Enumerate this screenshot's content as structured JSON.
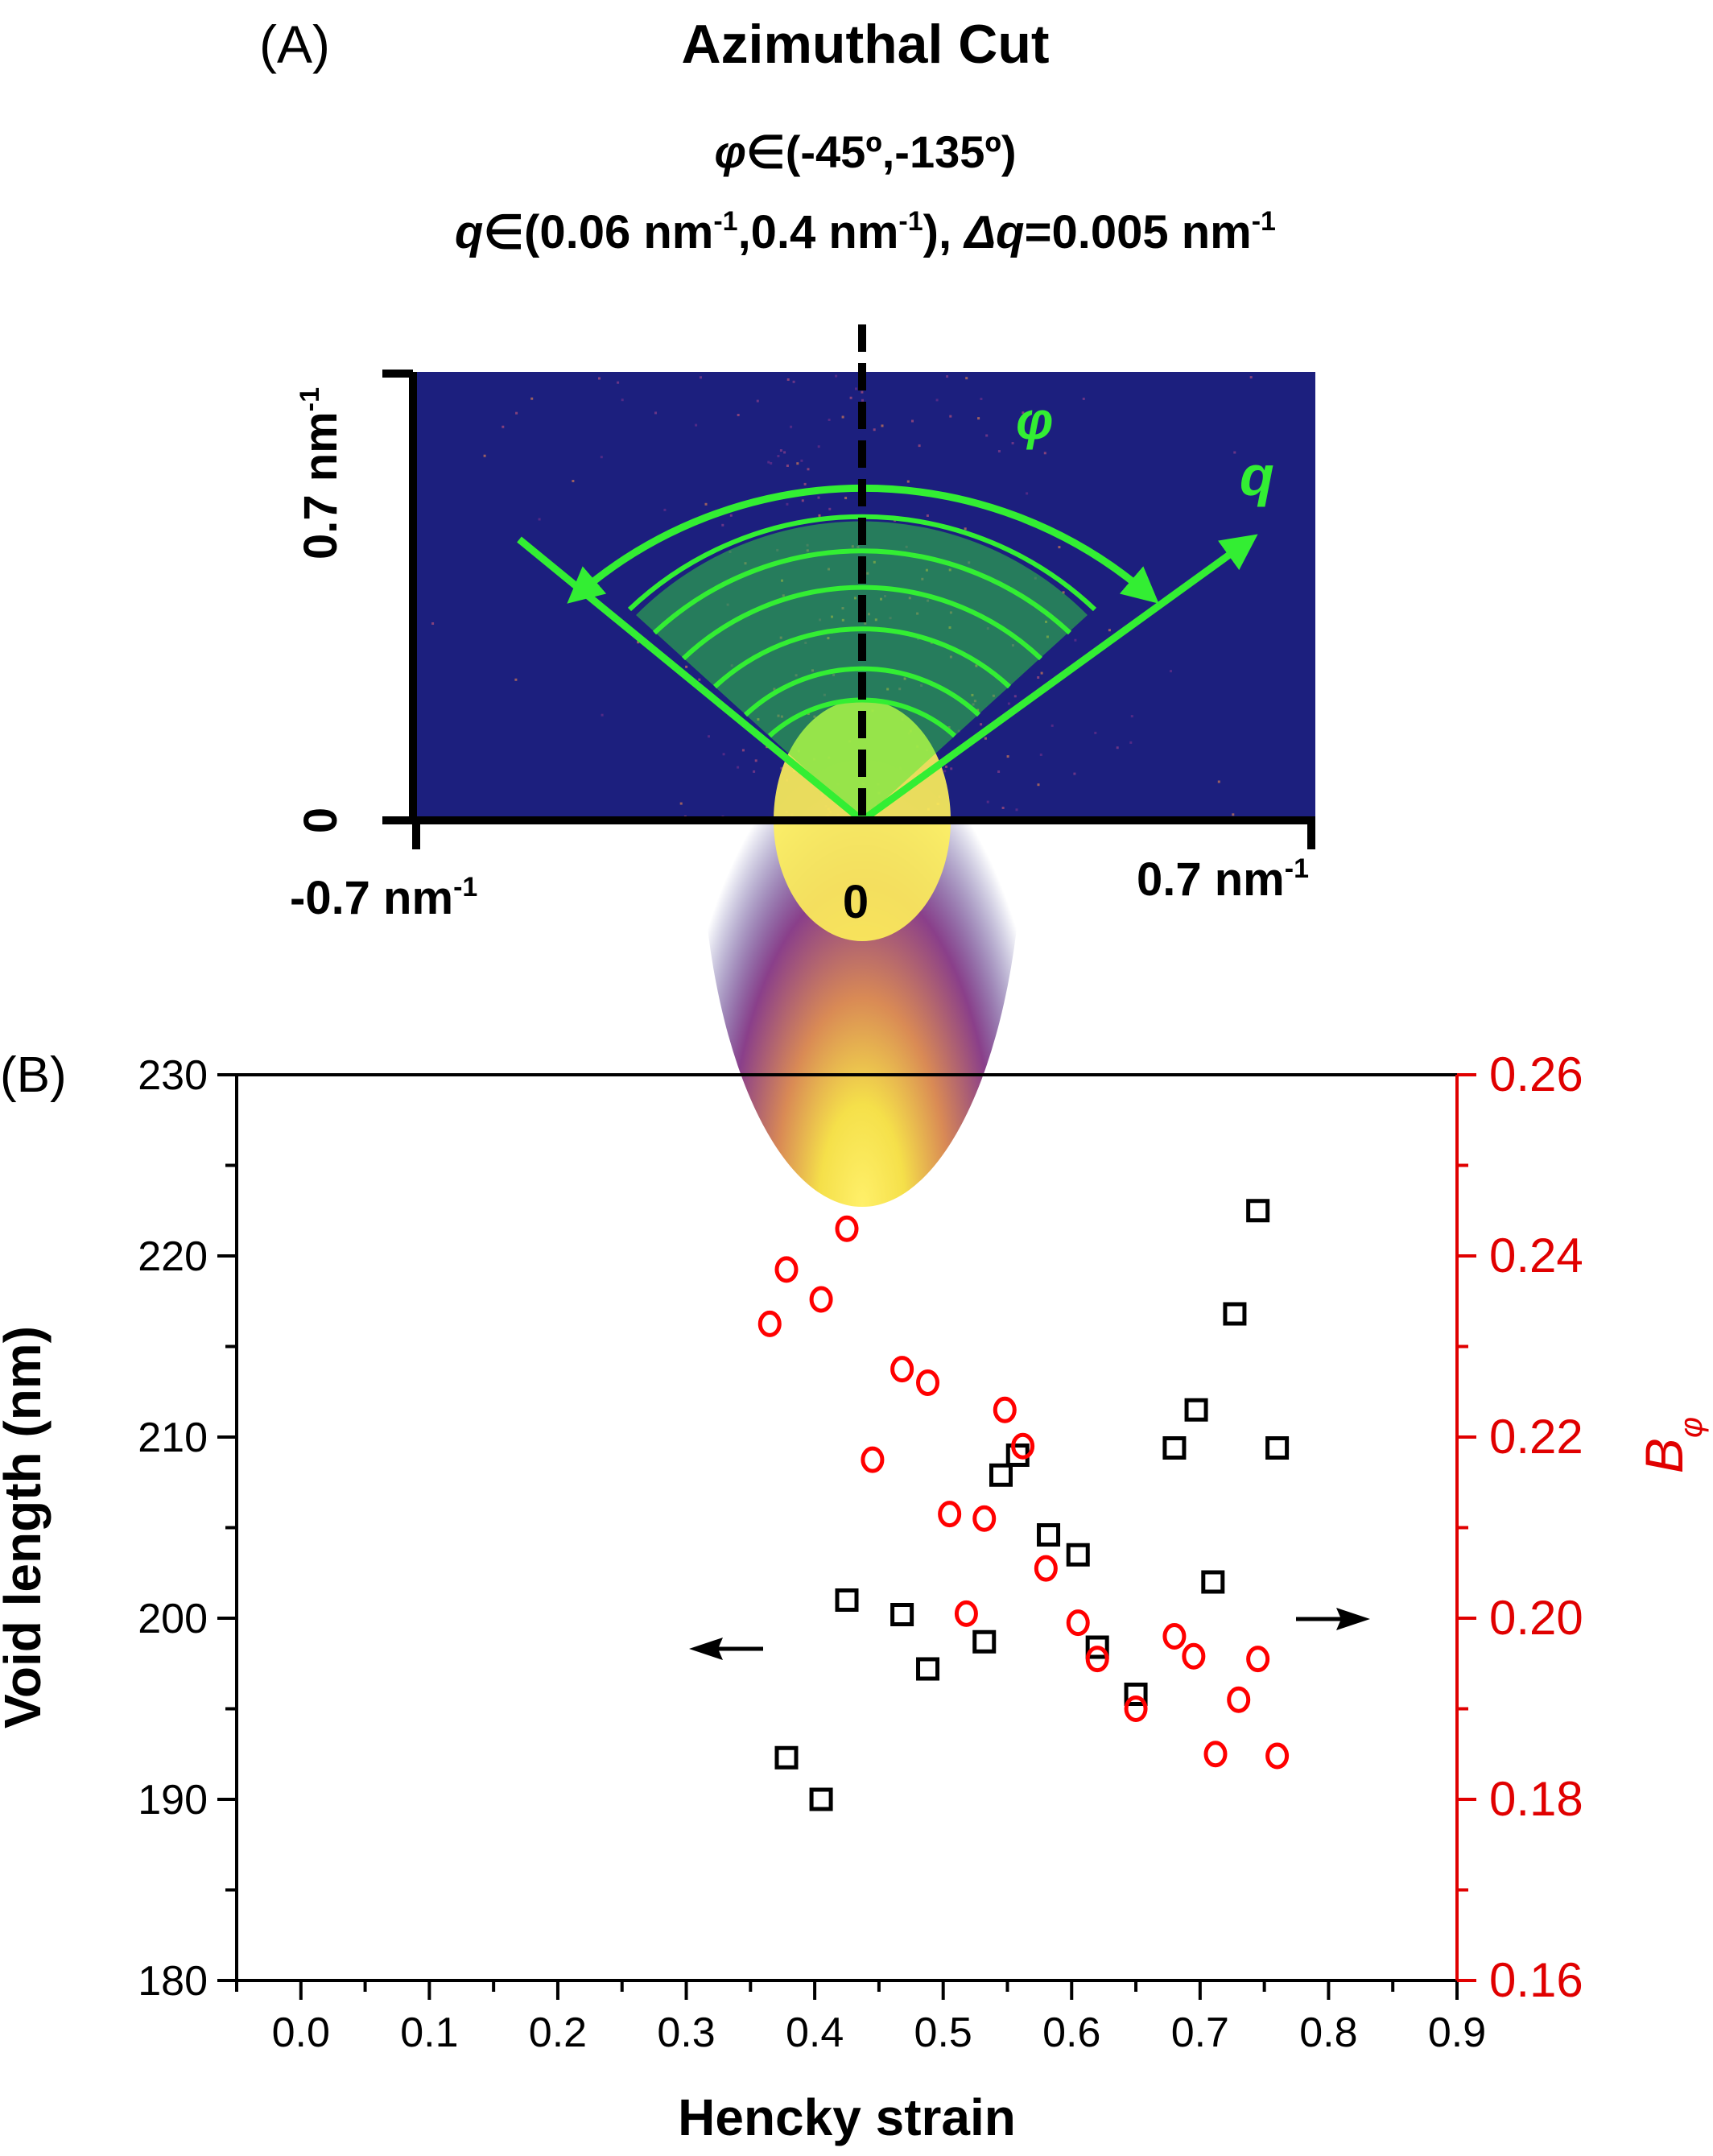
{
  "panel_a": {
    "label": "(A)",
    "title": "Azimuthal Cut",
    "phi_line": {
      "sym": "φ",
      "rest": "∈(-45º,-135º)"
    },
    "q_line": {
      "q_sym": "q",
      "q_range_a": "∈(0.06 nm",
      "sup1": "-1",
      "q_range_b": ",0.4 nm",
      "sup2": "-1",
      "q_range_c": "), ",
      "dq_sym": "Δq",
      "dq_val": "=0.005 nm",
      "sup3": "-1"
    },
    "y_top_label": {
      "text": "0.7 nm",
      "sup": "-1"
    },
    "y_zero_label": "0",
    "x_left_label": {
      "text": "-0.7 nm",
      "sup": "-1"
    },
    "x_zero_label": "0",
    "x_right_label": {
      "text": "0.7 nm",
      "sup": "-1"
    },
    "phi_symbol": "φ",
    "q_symbol": "q",
    "colors": {
      "background": "#1c1f7e",
      "overlay": "#33ee33",
      "hot": "#ffee33"
    }
  },
  "chart_data": {
    "type": "scatter",
    "panel_label": "(B)",
    "xlabel": "Hencky strain",
    "ylabel_left": "Void length (nm)",
    "ylabel_right": {
      "main": "B",
      "sub": "φ"
    },
    "xlim": [
      -0.05,
      0.9
    ],
    "ylim_left": [
      180,
      230
    ],
    "ylim_right": [
      0.16,
      0.26
    ],
    "x_ticks": [
      "0.0",
      "0.1",
      "0.2",
      "0.3",
      "0.4",
      "0.5",
      "0.6",
      "0.7",
      "0.8",
      "0.9"
    ],
    "y_left_ticks": [
      "180",
      "190",
      "200",
      "210",
      "220",
      "230"
    ],
    "y_right_ticks": [
      "0.16",
      "0.18",
      "0.20",
      "0.22",
      "0.24",
      "0.26"
    ],
    "grid": false,
    "series": [
      {
        "axis": "left",
        "marker": "square",
        "color": "#000000",
        "points": [
          [
            0.378,
            192.3
          ],
          [
            0.405,
            190.0
          ],
          [
            0.425,
            201.0
          ],
          [
            0.468,
            200.2
          ],
          [
            0.488,
            197.2
          ],
          [
            0.532,
            198.7
          ],
          [
            0.545,
            207.9
          ],
          [
            0.558,
            209.0
          ],
          [
            0.582,
            204.6
          ],
          [
            0.605,
            203.5
          ],
          [
            0.62,
            198.4
          ],
          [
            0.65,
            195.8
          ],
          [
            0.68,
            209.4
          ],
          [
            0.697,
            211.5
          ],
          [
            0.71,
            202.0
          ],
          [
            0.727,
            216.8
          ],
          [
            0.745,
            222.5
          ],
          [
            0.76,
            209.4
          ]
        ]
      },
      {
        "axis": "right",
        "marker": "circle",
        "color": "#ff0000",
        "points": [
          [
            0.365,
            0.2325
          ],
          [
            0.378,
            0.2385
          ],
          [
            0.405,
            0.2352
          ],
          [
            0.425,
            0.243
          ],
          [
            0.445,
            0.2175
          ],
          [
            0.468,
            0.2275
          ],
          [
            0.488,
            0.226
          ],
          [
            0.505,
            0.2115
          ],
          [
            0.518,
            0.2005
          ],
          [
            0.532,
            0.211
          ],
          [
            0.548,
            0.223
          ],
          [
            0.562,
            0.219
          ],
          [
            0.58,
            0.2055
          ],
          [
            0.605,
            0.1995
          ],
          [
            0.62,
            0.1955
          ],
          [
            0.65,
            0.19
          ],
          [
            0.68,
            0.198
          ],
          [
            0.695,
            0.1958
          ],
          [
            0.712,
            0.185
          ],
          [
            0.73,
            0.191
          ],
          [
            0.745,
            0.1955
          ],
          [
            0.76,
            0.1848
          ]
        ]
      }
    ]
  }
}
